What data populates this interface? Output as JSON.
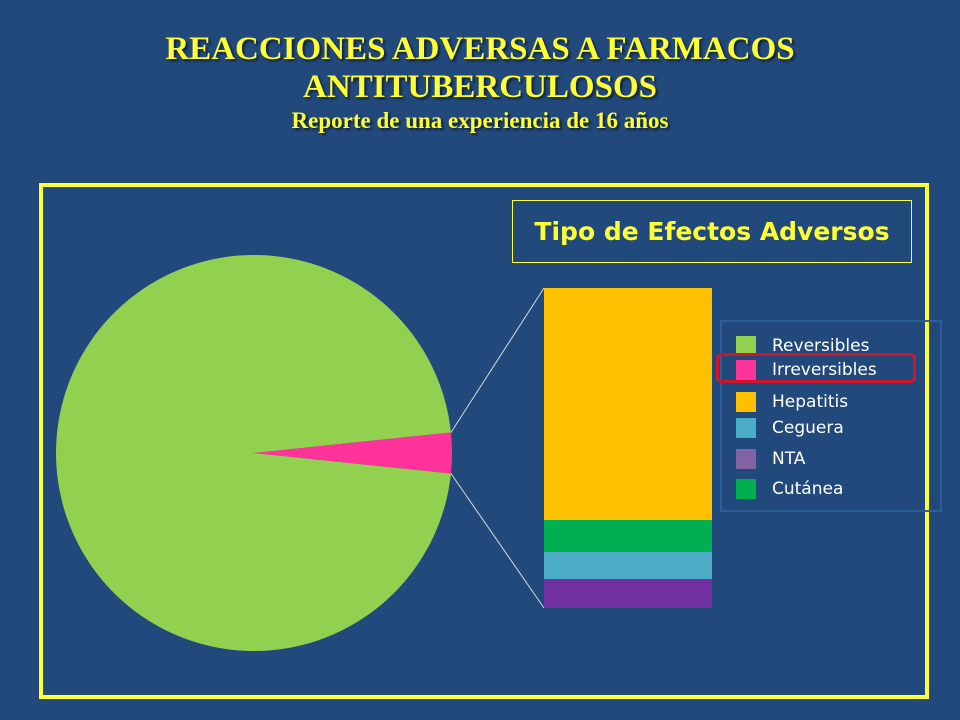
{
  "header": {
    "title_line1": "REACCIONES ADVERSAS A FARMACOS",
    "title_line2": "ANTITUBERCULOSOS",
    "subtitle": "Reporte de una experiencia de 16 años"
  },
  "chart_data": [
    {
      "type": "pie",
      "title": "",
      "slices": [
        {
          "label": "Reversibles",
          "value": 96.7,
          "color": "#92d050"
        },
        {
          "label": "Irreversibles",
          "value": 3.3,
          "color": "#ff3399"
        }
      ],
      "legend": "right"
    },
    {
      "type": "bar",
      "stacked": true,
      "title": "Tipo de Efectos Adversos",
      "series": [
        {
          "name": "Hepatitis",
          "value": 72.5,
          "color": "#ffc000"
        },
        {
          "name": "Cutánea",
          "value": 10,
          "color": "#00b050"
        },
        {
          "name": "Ceguera",
          "value": 8.5,
          "color": "#4bacc6"
        },
        {
          "name": "NTA",
          "value": 9,
          "color": "#7030a0"
        }
      ],
      "legend": "right"
    }
  ],
  "legend": {
    "items": [
      {
        "label": "Reversibles",
        "color": "#92d050"
      },
      {
        "label": "Irreversibles",
        "color": "#ff3399"
      },
      {
        "label": "Hepatitis",
        "color": "#ffc000"
      },
      {
        "label": "Ceguera",
        "color": "#4bacc6"
      },
      {
        "label": "NTA",
        "color": "#8064a2"
      },
      {
        "label": "Cutánea",
        "color": "#00b050"
      }
    ],
    "highlighted": "Irreversibles"
  }
}
